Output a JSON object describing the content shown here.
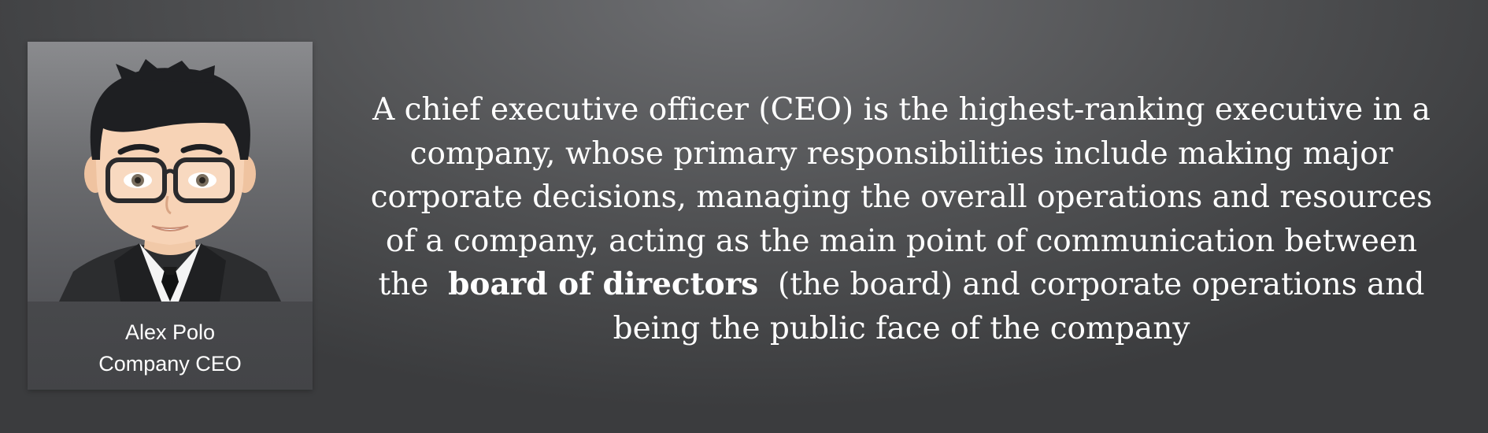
{
  "profile": {
    "name": "Alex Polo",
    "role": "Company CEO",
    "avatar_icon": "cartoon-businessman-avatar"
  },
  "description": {
    "before_bold": "A chief executive officer (CEO) is the highest-ranking executive in a company, whose primary responsibilities include making major corporate decisions, managing the overall operations and resources of a company, acting as the main point of communication between the",
    "bold": "board of directors",
    "after_bold": "(the board) and corporate operations and being the public face of the company"
  },
  "colors": {
    "background": "#505153",
    "text": "#ffffff"
  }
}
